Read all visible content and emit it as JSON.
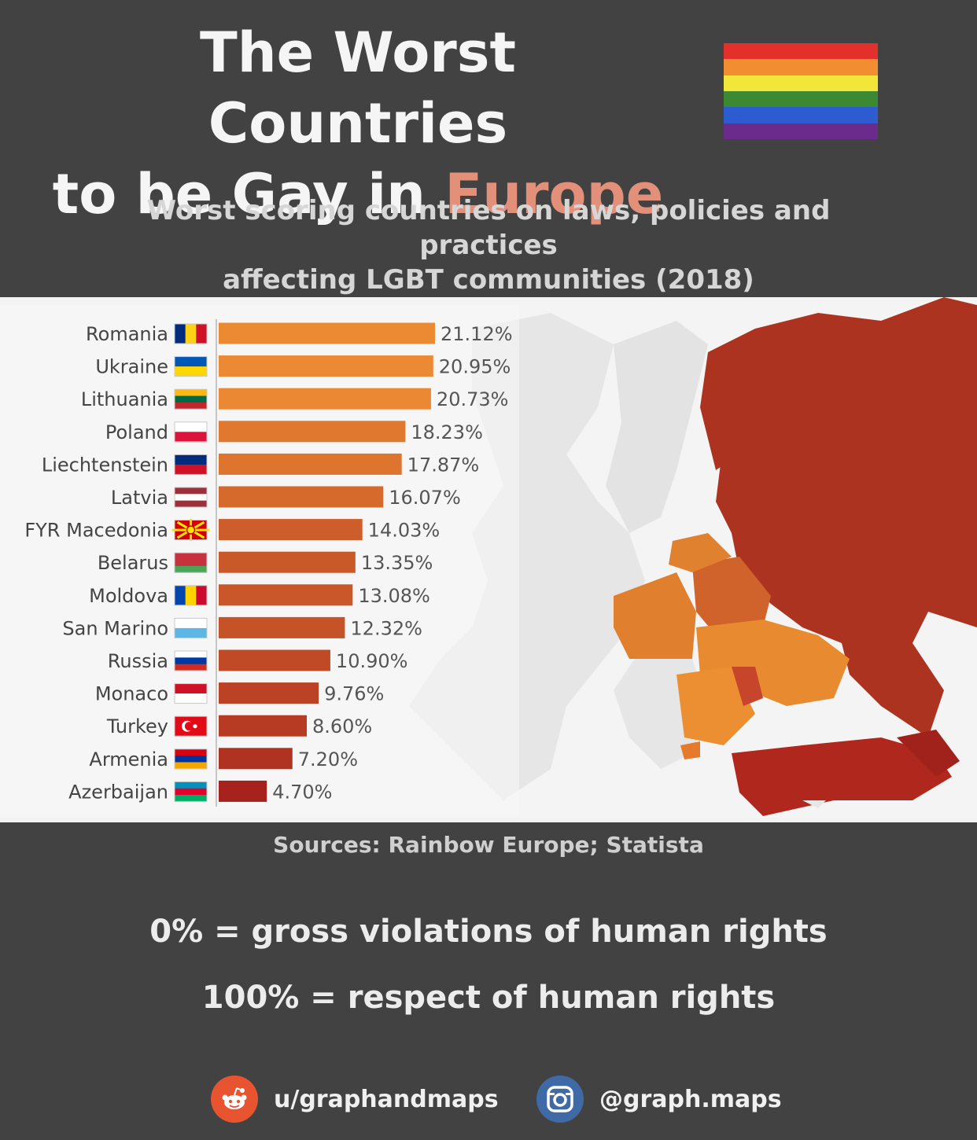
{
  "header": {
    "title_line1": "The Worst Countries",
    "title_line2_prefix": "to be Gay in ",
    "title_line2_accent": "Europe",
    "subtitle_line1": "Worst scoring countries on laws, policies and practices",
    "subtitle_line2": "affecting LGBT communities (2018)"
  },
  "colors": {
    "accent": "#e2907a",
    "background": "#424242",
    "panel": "#f4f4f4",
    "bar_high": "#ec8a34",
    "bar_low": "#a5221d",
    "rainbow": [
      "#e3302b",
      "#f28d32",
      "#f3e63b",
      "#3b8a33",
      "#2c5ccf",
      "#6b2b8c"
    ]
  },
  "chart_data": {
    "type": "bar",
    "orientation": "horizontal",
    "categories": [
      "Romania",
      "Ukraine",
      "Lithuania",
      "Poland",
      "Liechtenstein",
      "Latvia",
      "FYR Macedonia",
      "Belarus",
      "Moldova",
      "San Marino",
      "Russia",
      "Monaco",
      "Turkey",
      "Armenia",
      "Azerbaijan"
    ],
    "values": [
      21.12,
      20.95,
      20.73,
      18.23,
      17.87,
      16.07,
      14.03,
      13.35,
      13.08,
      12.32,
      10.9,
      9.76,
      8.6,
      7.2,
      4.7
    ],
    "value_labels": [
      "21.12%",
      "20.95%",
      "20.73%",
      "18.23%",
      "17.87%",
      "16.07%",
      "14.03%",
      "13.35%",
      "13.08%",
      "12.32%",
      "10.90%",
      "9.76%",
      "8.60%",
      "7.20%",
      "4.70%"
    ],
    "unit": "%",
    "xlim": [
      0,
      21.12
    ],
    "grid": false,
    "legend": "none",
    "flags": {
      "Romania": {
        "type": "v",
        "colors": [
          "#002b7f",
          "#fcd116",
          "#ce1126"
        ]
      },
      "Ukraine": {
        "type": "h",
        "colors": [
          "#0057b7",
          "#ffd700"
        ]
      },
      "Lithuania": {
        "type": "h",
        "colors": [
          "#fdb913",
          "#006a44",
          "#c1272d"
        ]
      },
      "Poland": {
        "type": "h",
        "colors": [
          "#ffffff",
          "#dc143c"
        ]
      },
      "Liechtenstein": {
        "type": "h",
        "colors": [
          "#002b7f",
          "#ce1126"
        ]
      },
      "Latvia": {
        "type": "h",
        "colors": [
          "#9e3039",
          "#ffffff",
          "#9e3039"
        ]
      },
      "FYR Macedonia": {
        "type": "sun",
        "colors": [
          "#d20000",
          "#ffe600"
        ]
      },
      "Belarus": {
        "type": "h",
        "colors": [
          "#c8313e",
          "#c8313e",
          "#4aa657"
        ]
      },
      "Moldova": {
        "type": "v",
        "colors": [
          "#0046ae",
          "#ffd200",
          "#cc092f"
        ]
      },
      "San Marino": {
        "type": "h",
        "colors": [
          "#ffffff",
          "#5eb6e4"
        ]
      },
      "Russia": {
        "type": "h",
        "colors": [
          "#ffffff",
          "#0039a6",
          "#d52b1e"
        ]
      },
      "Monaco": {
        "type": "h",
        "colors": [
          "#ce1126",
          "#ffffff"
        ]
      },
      "Turkey": {
        "type": "h",
        "colors": [
          "#e30a17"
        ]
      },
      "Armenia": {
        "type": "h",
        "colors": [
          "#d90012",
          "#0033a0",
          "#f2a800"
        ]
      },
      "Azerbaijan": {
        "type": "h",
        "colors": [
          "#0092bc",
          "#e4002b",
          "#00af66"
        ]
      }
    }
  },
  "footer": {
    "sources": "Sources:  Rainbow Europe; Statista",
    "legend_zero": "0% = gross violations of human rights",
    "legend_hundred": "100% = respect of human rights",
    "reddit_handle": "u/graphandmaps",
    "instagram_handle": "@graph.maps",
    "reddit_icon": "reddit-icon",
    "instagram_icon": "instagram-icon"
  }
}
